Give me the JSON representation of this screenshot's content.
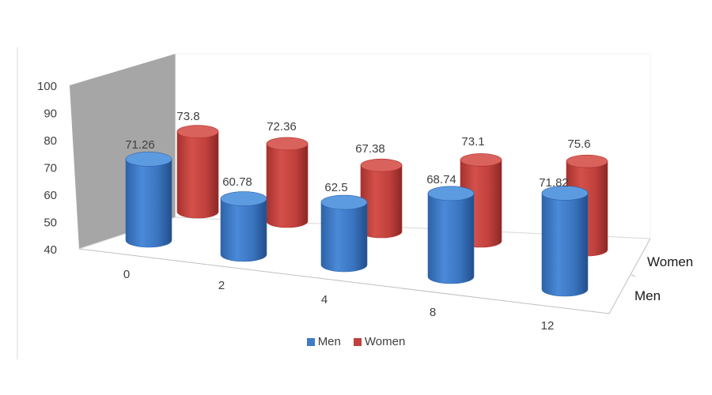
{
  "chart_data": {
    "type": "bar",
    "variant": "3d-cylinder",
    "title": "",
    "xlabel": "",
    "ylabel": "",
    "categories": [
      "0",
      "2",
      "4",
      "8",
      "12"
    ],
    "ylim": [
      40,
      100
    ],
    "yticks": [
      40,
      50,
      60,
      70,
      80,
      90,
      100
    ],
    "grid": false,
    "legend_position": "bottom",
    "series": [
      {
        "name": "Men",
        "values": [
          71.26,
          60.78,
          62.5,
          68.74,
          71.82
        ],
        "labels": [
          "71.26",
          "60.78",
          "62.5",
          "68.74",
          "71.82"
        ],
        "color": "#3f7cc8"
      },
      {
        "name": "Women",
        "values": [
          73.8,
          72.36,
          67.38,
          73.1,
          75.6
        ],
        "labels": [
          "73.8",
          "72.36",
          "67.38",
          "73.1",
          "75.6"
        ],
        "color": "#c0403c"
      }
    ]
  }
}
